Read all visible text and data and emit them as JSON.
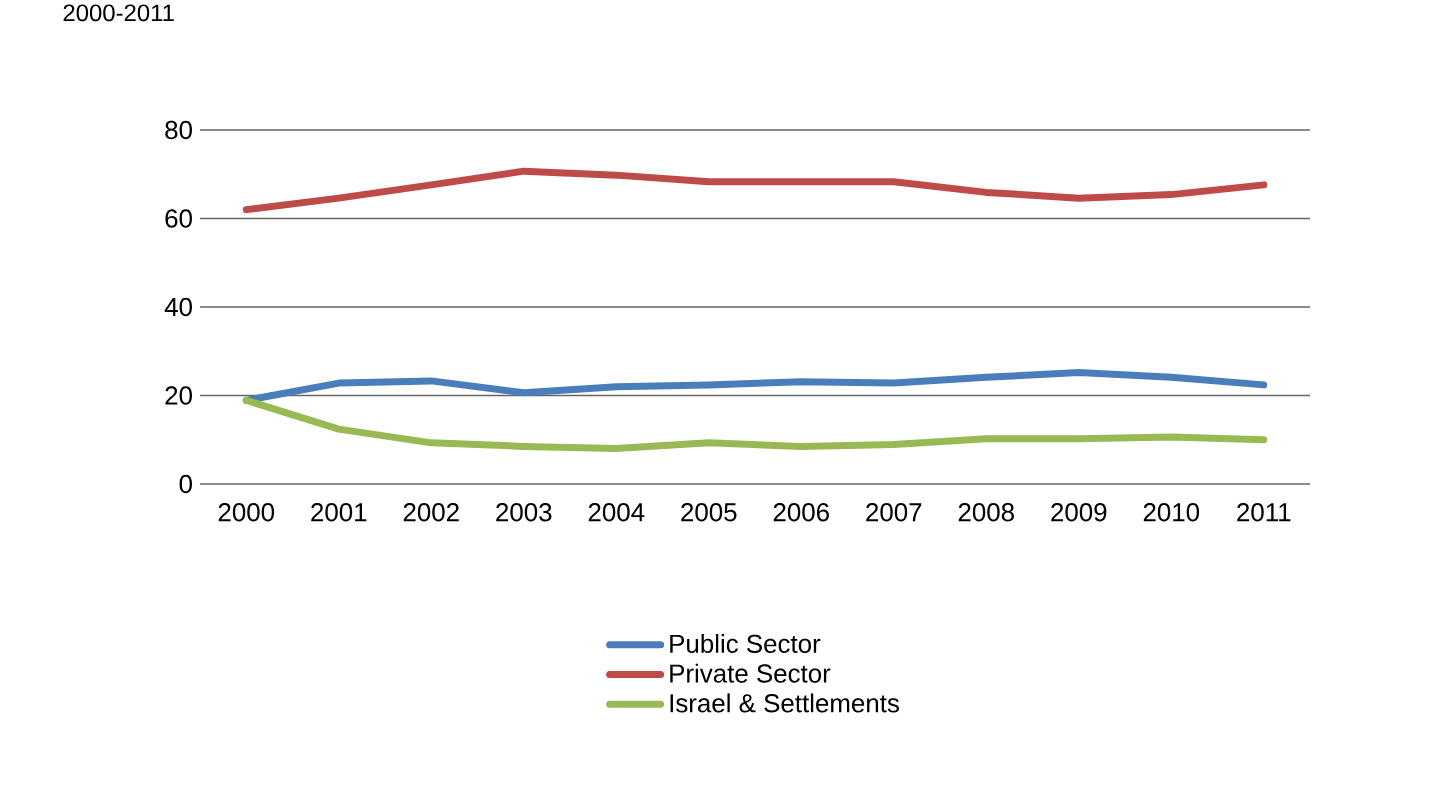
{
  "chart_data": {
    "type": "line",
    "title": "2000-2011",
    "categories": [
      "2000",
      "2001",
      "2002",
      "2003",
      "2004",
      "2005",
      "2006",
      "2007",
      "2008",
      "2009",
      "2010",
      "2011"
    ],
    "series": [
      {
        "name": "Public Sector",
        "color": "#4a7ebb",
        "values": [
          18.9,
          22.8,
          23.3,
          20.6,
          22,
          22.4,
          23.1,
          22.8,
          24.1,
          25.2,
          24.1,
          22.4
        ]
      },
      {
        "name": "Private Sector",
        "color": "#be4b48",
        "values": [
          62,
          64.6,
          67.6,
          70.7,
          69.8,
          68.3,
          68.3,
          68.3,
          65.9,
          64.6,
          65.4,
          67.6
        ]
      },
      {
        "name": "Israel & Settlements",
        "color": "#98b954",
        "values": [
          18.9,
          12.4,
          9.3,
          8.5,
          8,
          9.3,
          8.5,
          8.9,
          10.2,
          10.2,
          10.6,
          10
        ]
      }
    ],
    "ylim": [
      0,
      80
    ],
    "yticks": [
      0,
      20,
      40,
      60,
      80
    ],
    "grid": "y",
    "legend": "bottom",
    "marker": "none",
    "line_style": "solid"
  }
}
